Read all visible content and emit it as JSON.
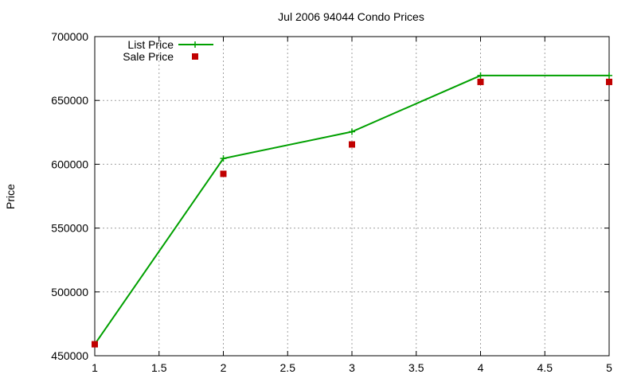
{
  "chart_data": {
    "type": "line",
    "title": "Jul 2006 94044 Condo Prices",
    "xlabel": "",
    "ylabel": "Price",
    "xlim": [
      1,
      5
    ],
    "ylim": [
      450000,
      700000
    ],
    "x_ticks": [
      "1",
      "1.5",
      "2",
      "2.5",
      "3",
      "3.5",
      "4",
      "4.5",
      "5"
    ],
    "y_ticks": [
      "450000",
      "500000",
      "550000",
      "600000",
      "650000",
      "700000"
    ],
    "grid": true,
    "legend_position": "top-left",
    "series": [
      {
        "name": "List Price",
        "style": "line-with-plus-markers",
        "color": "#00a000",
        "x": [
          1,
          2,
          3,
          4,
          5
        ],
        "values": [
          459000,
          604500,
          625500,
          669500,
          669500
        ]
      },
      {
        "name": "Sale Price",
        "style": "square-markers",
        "color": "#c00000",
        "x": [
          1,
          2,
          3,
          4,
          5
        ],
        "values": [
          459000,
          592500,
          615500,
          664500,
          664500
        ]
      }
    ]
  }
}
